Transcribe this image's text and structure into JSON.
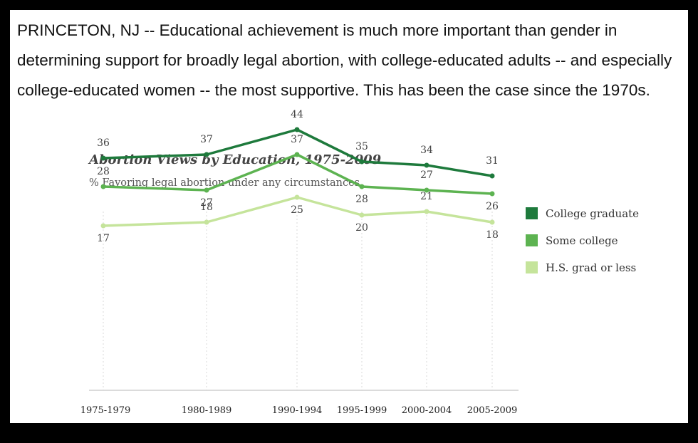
{
  "intro_text": "PRINCETON, NJ -- Educational achievement is much more important than gender in determining support for broadly legal abortion, with college-educated adults -- and especially college-educated women -- the most supportive. This has been the case since the 1970s.",
  "chart_data": {
    "type": "line",
    "title": "Abortion Views by Education, 1975-2009",
    "subtitle": "% Favoring legal abortion under any circumstances",
    "xlabel": "",
    "ylabel": "",
    "ylim": [
      0,
      50
    ],
    "grid": "vertical dotted lines at each category",
    "legend_position": "right",
    "categories": [
      "1975-1979",
      "1980-1989",
      "1990-1994",
      "1995-1999",
      "2000-2004",
      "2005-2009"
    ],
    "series": [
      {
        "name": "College graduate",
        "color": "#1e7a3c",
        "values": [
          36,
          37,
          44,
          35,
          34,
          31
        ]
      },
      {
        "name": "Some college",
        "color": "#5db351",
        "values": [
          28,
          27,
          37,
          28,
          27,
          26
        ]
      },
      {
        "name": "H.S. grad or less",
        "color": "#c5e49b",
        "values": [
          17,
          18,
          25,
          20,
          21,
          18
        ]
      }
    ]
  }
}
